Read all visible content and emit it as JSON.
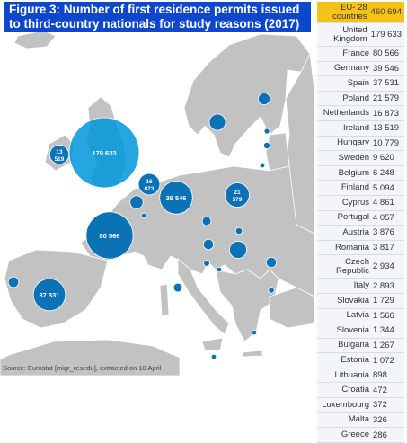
{
  "title": {
    "line1": "Figure 3: Number of first residence permits issued",
    "line2": "to third-country nationals for study reasons (2017)"
  },
  "colors": {
    "title_bg": "#0e47cb",
    "eu_highlight": "#f7c217",
    "bubble": "#0b72b5",
    "land": "#c2c2c2",
    "sea": "#ffffff"
  },
  "legend": [
    {
      "country": "EU- 28 countries",
      "value": "460 694",
      "highlight": true
    },
    {
      "country": "United Kingdom",
      "value": "179 633"
    },
    {
      "country": "France",
      "value": "80 566"
    },
    {
      "country": "Germany",
      "value": "39 546"
    },
    {
      "country": "Spain",
      "value": "37 531"
    },
    {
      "country": "Poland",
      "value": "21 579"
    },
    {
      "country": "Netherlands",
      "value": "16 873"
    },
    {
      "country": "Ireland",
      "value": "13 519"
    },
    {
      "country": "Hungary",
      "value": "10 779"
    },
    {
      "country": "Sweden",
      "value": "9 620"
    },
    {
      "country": "Belgium",
      "value": "6 248"
    },
    {
      "country": "Finland",
      "value": "5 094"
    },
    {
      "country": "Cyprus",
      "value": "4 861"
    },
    {
      "country": "Portugal",
      "value": "4 057"
    },
    {
      "country": "Austria",
      "value": "3 876"
    },
    {
      "country": "Romania",
      "value": "3 817"
    },
    {
      "country": "Czech Republic",
      "value": "2 934"
    },
    {
      "country": "Italy",
      "value": "2 893"
    },
    {
      "country": "Slovakia",
      "value": "1 729"
    },
    {
      "country": "Latvia",
      "value": "1 566"
    },
    {
      "country": "Slovenia",
      "value": "1 344"
    },
    {
      "country": "Bulgaria",
      "value": "1 267"
    },
    {
      "country": "Estonia",
      "value": "1 072"
    },
    {
      "country": "Lithuania",
      "value": "898"
    },
    {
      "country": "Croatia",
      "value": "472"
    },
    {
      "country": "Luxembourg",
      "value": "372"
    },
    {
      "country": "Malta",
      "value": "326"
    },
    {
      "country": "Greece",
      "value": "286"
    }
  ],
  "bubbles": [
    {
      "country": "United Kingdom",
      "value": 179633,
      "label": "179 633"
    },
    {
      "country": "France",
      "value": 80566,
      "label": "80 566"
    },
    {
      "country": "Germany",
      "value": 39546,
      "label": "39 546"
    },
    {
      "country": "Spain",
      "value": 37531,
      "label": "37 531"
    },
    {
      "country": "Poland",
      "value": 21579,
      "label": "21 579"
    },
    {
      "country": "Netherlands",
      "value": 16873,
      "label": "16 873"
    },
    {
      "country": "Ireland",
      "value": 13519,
      "label": "13 519"
    },
    {
      "country": "Hungary",
      "value": 10779,
      "label": ""
    },
    {
      "country": "Sweden",
      "value": 9620,
      "label": ""
    },
    {
      "country": "Belgium",
      "value": 6248,
      "label": ""
    },
    {
      "country": "Finland",
      "value": 5094,
      "label": ""
    },
    {
      "country": "Cyprus",
      "value": 4861,
      "label": ""
    },
    {
      "country": "Portugal",
      "value": 4057,
      "label": ""
    },
    {
      "country": "Austria",
      "value": 3876,
      "label": ""
    },
    {
      "country": "Romania",
      "value": 3817,
      "label": ""
    },
    {
      "country": "Czech Republic",
      "value": 2934,
      "label": ""
    },
    {
      "country": "Italy",
      "value": 2893,
      "label": ""
    },
    {
      "country": "Slovakia",
      "value": 1729,
      "label": ""
    },
    {
      "country": "Latvia",
      "value": 1566,
      "label": ""
    },
    {
      "country": "Slovenia",
      "value": 1344,
      "label": ""
    },
    {
      "country": "Bulgaria",
      "value": 1267,
      "label": ""
    },
    {
      "country": "Estonia",
      "value": 1072,
      "label": ""
    },
    {
      "country": "Lithuania",
      "value": 898,
      "label": ""
    },
    {
      "country": "Croatia",
      "value": 472,
      "label": ""
    },
    {
      "country": "Luxembourg",
      "value": 372,
      "label": ""
    },
    {
      "country": "Malta",
      "value": 326,
      "label": ""
    },
    {
      "country": "Greece",
      "value": 286,
      "label": ""
    }
  ],
  "source": "Source: Eurostat [migr_resedu], extracted on 10 April"
}
